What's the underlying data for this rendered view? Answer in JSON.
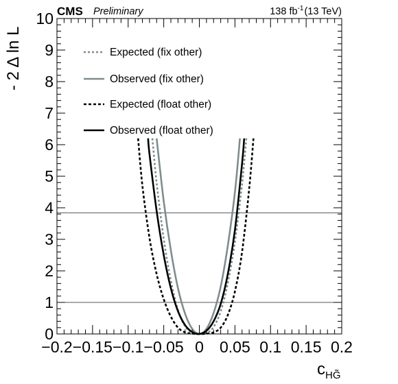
{
  "header": {
    "experiment": "CMS",
    "status": "Preliminary",
    "lumi_value": "138 fb",
    "lumi_exp": "-1",
    "lumi_energy": "(13 TeV)"
  },
  "chart_data": {
    "type": "line",
    "xlabel_main": "c",
    "xlabel_sub": "HG̃",
    "ylabel": "- 2 Δ ln L",
    "xlim": [
      -0.2,
      0.2
    ],
    "ylim": [
      0,
      10
    ],
    "x_ticks": [
      -0.2,
      -0.15,
      -0.1,
      -0.05,
      0,
      0.05,
      0.1,
      0.15,
      0.2
    ],
    "x_tick_labels": [
      "−0.2",
      "−0.15",
      "−0.1",
      "−0.05",
      "0",
      "0.05",
      "0.1",
      "0.15",
      "0.2"
    ],
    "y_ticks": [
      0,
      1,
      2,
      3,
      4,
      5,
      6,
      7,
      8,
      9,
      10
    ],
    "y_tick_labels": [
      "0",
      "1",
      "2",
      "3",
      "4",
      "5",
      "6",
      "7",
      "8",
      "9",
      "10"
    ],
    "reference_lines": [
      1,
      3.84
    ],
    "grid": false,
    "legend_position": "top-left",
    "series": [
      {
        "name": "Expected (fix other)",
        "color": "#7f8c8d",
        "style": "dotted",
        "x": [
          -0.066,
          -0.06,
          -0.05,
          -0.04,
          -0.03,
          -0.02,
          -0.01,
          0,
          0.01,
          0.02,
          0.03,
          0.04,
          0.05,
          0.06,
          0.066
        ],
        "y": [
          6.2,
          4.79,
          3.01,
          1.69,
          0.76,
          0.24,
          0.04,
          0,
          0.03,
          0.22,
          0.72,
          1.62,
          2.93,
          4.76,
          6.2
        ]
      },
      {
        "name": "Observed (fix other)",
        "color": "#7f8c8d",
        "style": "solid",
        "x": [
          -0.06,
          -0.05,
          -0.04,
          -0.03,
          -0.02,
          -0.01,
          0,
          0.01,
          0.02,
          0.03,
          0.04,
          0.05,
          0.057
        ],
        "y": [
          6.2,
          4.2,
          2.65,
          1.45,
          0.64,
          0.16,
          0,
          0.16,
          0.66,
          1.5,
          2.8,
          4.5,
          6.2
        ]
      },
      {
        "name": "Expected (float other)",
        "color": "#000000",
        "style": "dotted",
        "x": [
          -0.086,
          -0.08,
          -0.07,
          -0.06,
          -0.05,
          -0.04,
          -0.03,
          -0.02,
          -0.01,
          0,
          0.01,
          0.02,
          0.03,
          0.04,
          0.05,
          0.06,
          0.07,
          0.076
        ],
        "y": [
          6.2,
          4.7,
          3.04,
          1.9,
          1.1,
          0.55,
          0.2,
          0.05,
          0.01,
          0,
          0.01,
          0.05,
          0.2,
          0.6,
          1.35,
          2.6,
          4.6,
          6.2
        ]
      },
      {
        "name": "Observed (float other)",
        "color": "#000000",
        "style": "solid",
        "x": [
          -0.072,
          -0.07,
          -0.06,
          -0.05,
          -0.04,
          -0.03,
          -0.02,
          -0.01,
          0,
          0.01,
          0.02,
          0.03,
          0.04,
          0.05,
          0.06,
          0.063
        ],
        "y": [
          6.2,
          5.7,
          3.9,
          2.5,
          1.45,
          0.72,
          0.28,
          0.06,
          0,
          0.1,
          0.4,
          0.95,
          1.9,
          3.3,
          5.4,
          6.2
        ]
      }
    ]
  }
}
